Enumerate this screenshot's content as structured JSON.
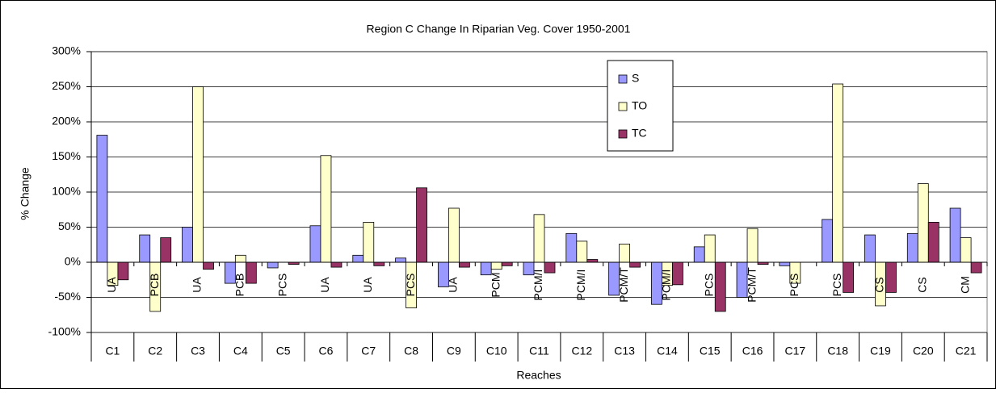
{
  "chart_data": {
    "type": "bar",
    "title": "Region C Change In Riparian Veg. Cover 1950-2001",
    "y_label": "% Change",
    "x_label": "Reaches",
    "categories": [
      "C1",
      "C2",
      "C3",
      "C4",
      "C5",
      "C6",
      "C7",
      "C8",
      "C9",
      "C10",
      "C11",
      "C12",
      "C13",
      "C14",
      "C15",
      "C16",
      "C17",
      "C18",
      "C19",
      "C20",
      "C21"
    ],
    "sublabels": [
      "UA",
      "PCB",
      "UA",
      "PCB",
      "PCS",
      "UA",
      "UA",
      "PCS",
      "UA",
      "PCM",
      "PCM/I",
      "PCM/I",
      "PCM/T",
      "PCM/I",
      "PCS",
      "PCM/T",
      "PCS",
      "PCS",
      "CS",
      "CS",
      "CM"
    ],
    "series": [
      {
        "name": "S",
        "color": "#9999ff",
        "values": [
          181,
          39,
          50,
          -30,
          -8,
          52,
          10,
          6,
          -35,
          -18,
          -18,
          41,
          -47,
          -60,
          22,
          -50,
          -5,
          61,
          39,
          41,
          77
        ]
      },
      {
        "name": "TO",
        "color": "#ffffcc",
        "values": [
          -33,
          -70,
          250,
          10,
          0,
          152,
          57,
          -65,
          77,
          -10,
          68,
          30,
          26,
          -33,
          39,
          48,
          -30,
          254,
          -62,
          112,
          35
        ]
      },
      {
        "name": "TC",
        "color": "#993366",
        "values": [
          -25,
          35,
          -10,
          -30,
          -3,
          -7,
          -5,
          106,
          -7,
          -5,
          -15,
          4,
          -7,
          -32,
          -70,
          -3,
          0,
          -43,
          -43,
          57,
          -15
        ]
      }
    ],
    "ylim": [
      -100,
      300
    ],
    "yticks": [
      {
        "value": -100,
        "label": "-100%"
      },
      {
        "value": -50,
        "label": "-50%"
      },
      {
        "value": 0,
        "label": "0%"
      },
      {
        "value": 50,
        "label": "50%"
      },
      {
        "value": 100,
        "label": "100%"
      },
      {
        "value": 150,
        "label": "150%"
      },
      {
        "value": 200,
        "label": "200%"
      },
      {
        "value": 250,
        "label": "250%"
      },
      {
        "value": 300,
        "label": "300%"
      }
    ],
    "grid": true,
    "legend": "top-right"
  }
}
